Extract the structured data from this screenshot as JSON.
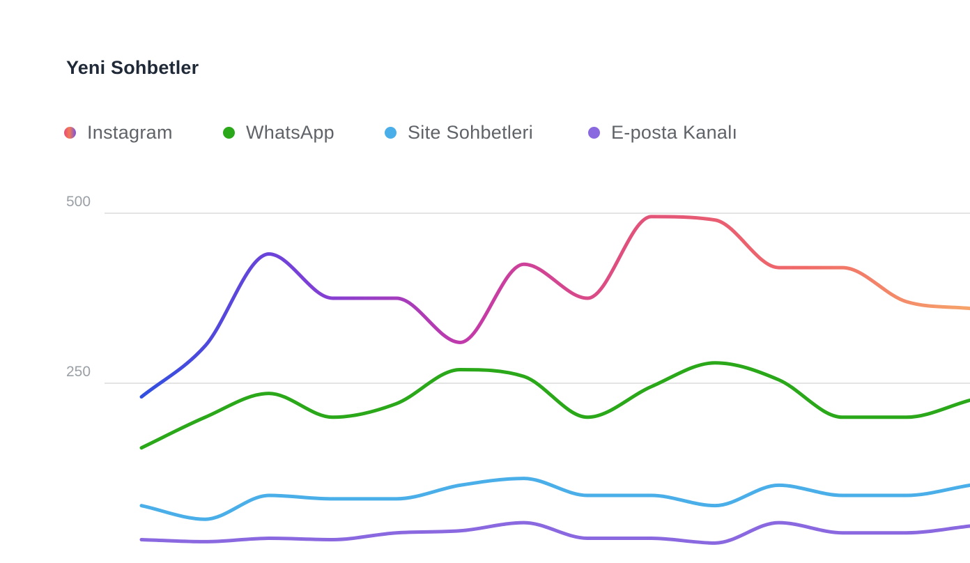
{
  "chart_data": {
    "type": "line",
    "title": "Yeni Sohbetler",
    "xlabel": "",
    "ylabel": "",
    "ylim": [
      0,
      500
    ],
    "yticks": [
      {
        "value": 250,
        "label": "250"
      },
      {
        "value": 500,
        "label": "500"
      }
    ],
    "grid": true,
    "legend_position": "top-left",
    "x": [
      0,
      1,
      2,
      3,
      4,
      5,
      6,
      7,
      8,
      9,
      10,
      11,
      12,
      13
    ],
    "series": [
      {
        "name": "Instagram",
        "color": "#e8566f",
        "gradient": [
          "#3050e0",
          "#7b40d8",
          "#c43aa8",
          "#e2527a",
          "#f06a68",
          "#f6a36a"
        ],
        "values": [
          230,
          305,
          440,
          375,
          375,
          310,
          425,
          375,
          495,
          490,
          420,
          420,
          370,
          360
        ]
      },
      {
        "name": "WhatsApp",
        "color": "#2aa81a",
        "values": [
          155,
          200,
          235,
          200,
          220,
          270,
          260,
          200,
          245,
          280,
          255,
          200,
          200,
          225
        ]
      },
      {
        "name": "Site Sohbetleri",
        "color": "#4aaee8",
        "values": [
          70,
          50,
          85,
          80,
          80,
          100,
          110,
          85,
          85,
          70,
          100,
          85,
          85,
          100
        ]
      },
      {
        "name": "E-posta Kanalı",
        "color": "#8a68e0",
        "values": [
          20,
          17,
          22,
          20,
          30,
          33,
          45,
          22,
          22,
          15,
          45,
          30,
          30,
          40
        ]
      }
    ]
  }
}
